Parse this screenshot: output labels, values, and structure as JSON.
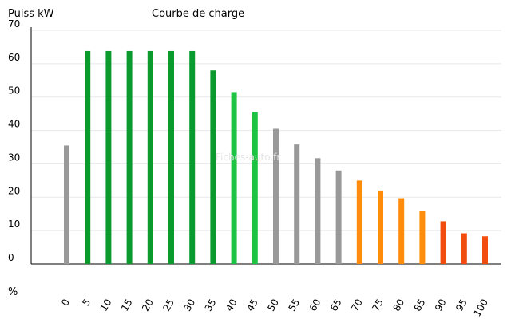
{
  "chart_data": {
    "type": "bar",
    "title": "Courbe de charge",
    "ylabel": "Puiss kW",
    "xlabel": "%",
    "watermark": "Fiches-auto.fr",
    "ylim": [
      0,
      70
    ],
    "yticks": [
      0,
      10,
      20,
      30,
      40,
      50,
      60,
      70
    ],
    "grid": true,
    "categories": [
      "0",
      "5",
      "10",
      "15",
      "20",
      "25",
      "30",
      "35",
      "40",
      "45",
      "50",
      "55",
      "60",
      "65",
      "70",
      "75",
      "80",
      "85",
      "90",
      "95",
      "100"
    ],
    "values": [
      35.5,
      63.8,
      63.8,
      63.8,
      63.8,
      63.8,
      63.8,
      58,
      51.5,
      45.5,
      40.5,
      35.8,
      31.7,
      28,
      25,
      22,
      19.7,
      16,
      12.8,
      9.2,
      8.3
    ],
    "colors": [
      "#999999",
      "#0a9a2e",
      "#0a9a2e",
      "#0a9a2e",
      "#0a9a2e",
      "#0a9a2e",
      "#0a9a2e",
      "#0a9a2e",
      "#1dc443",
      "#1dc443",
      "#999999",
      "#999999",
      "#999999",
      "#999999",
      "#ff8c0a",
      "#ff8c0a",
      "#ff8c0a",
      "#ff8c0a",
      "#f24d0f",
      "#f24d0f",
      "#f24d0f"
    ]
  }
}
